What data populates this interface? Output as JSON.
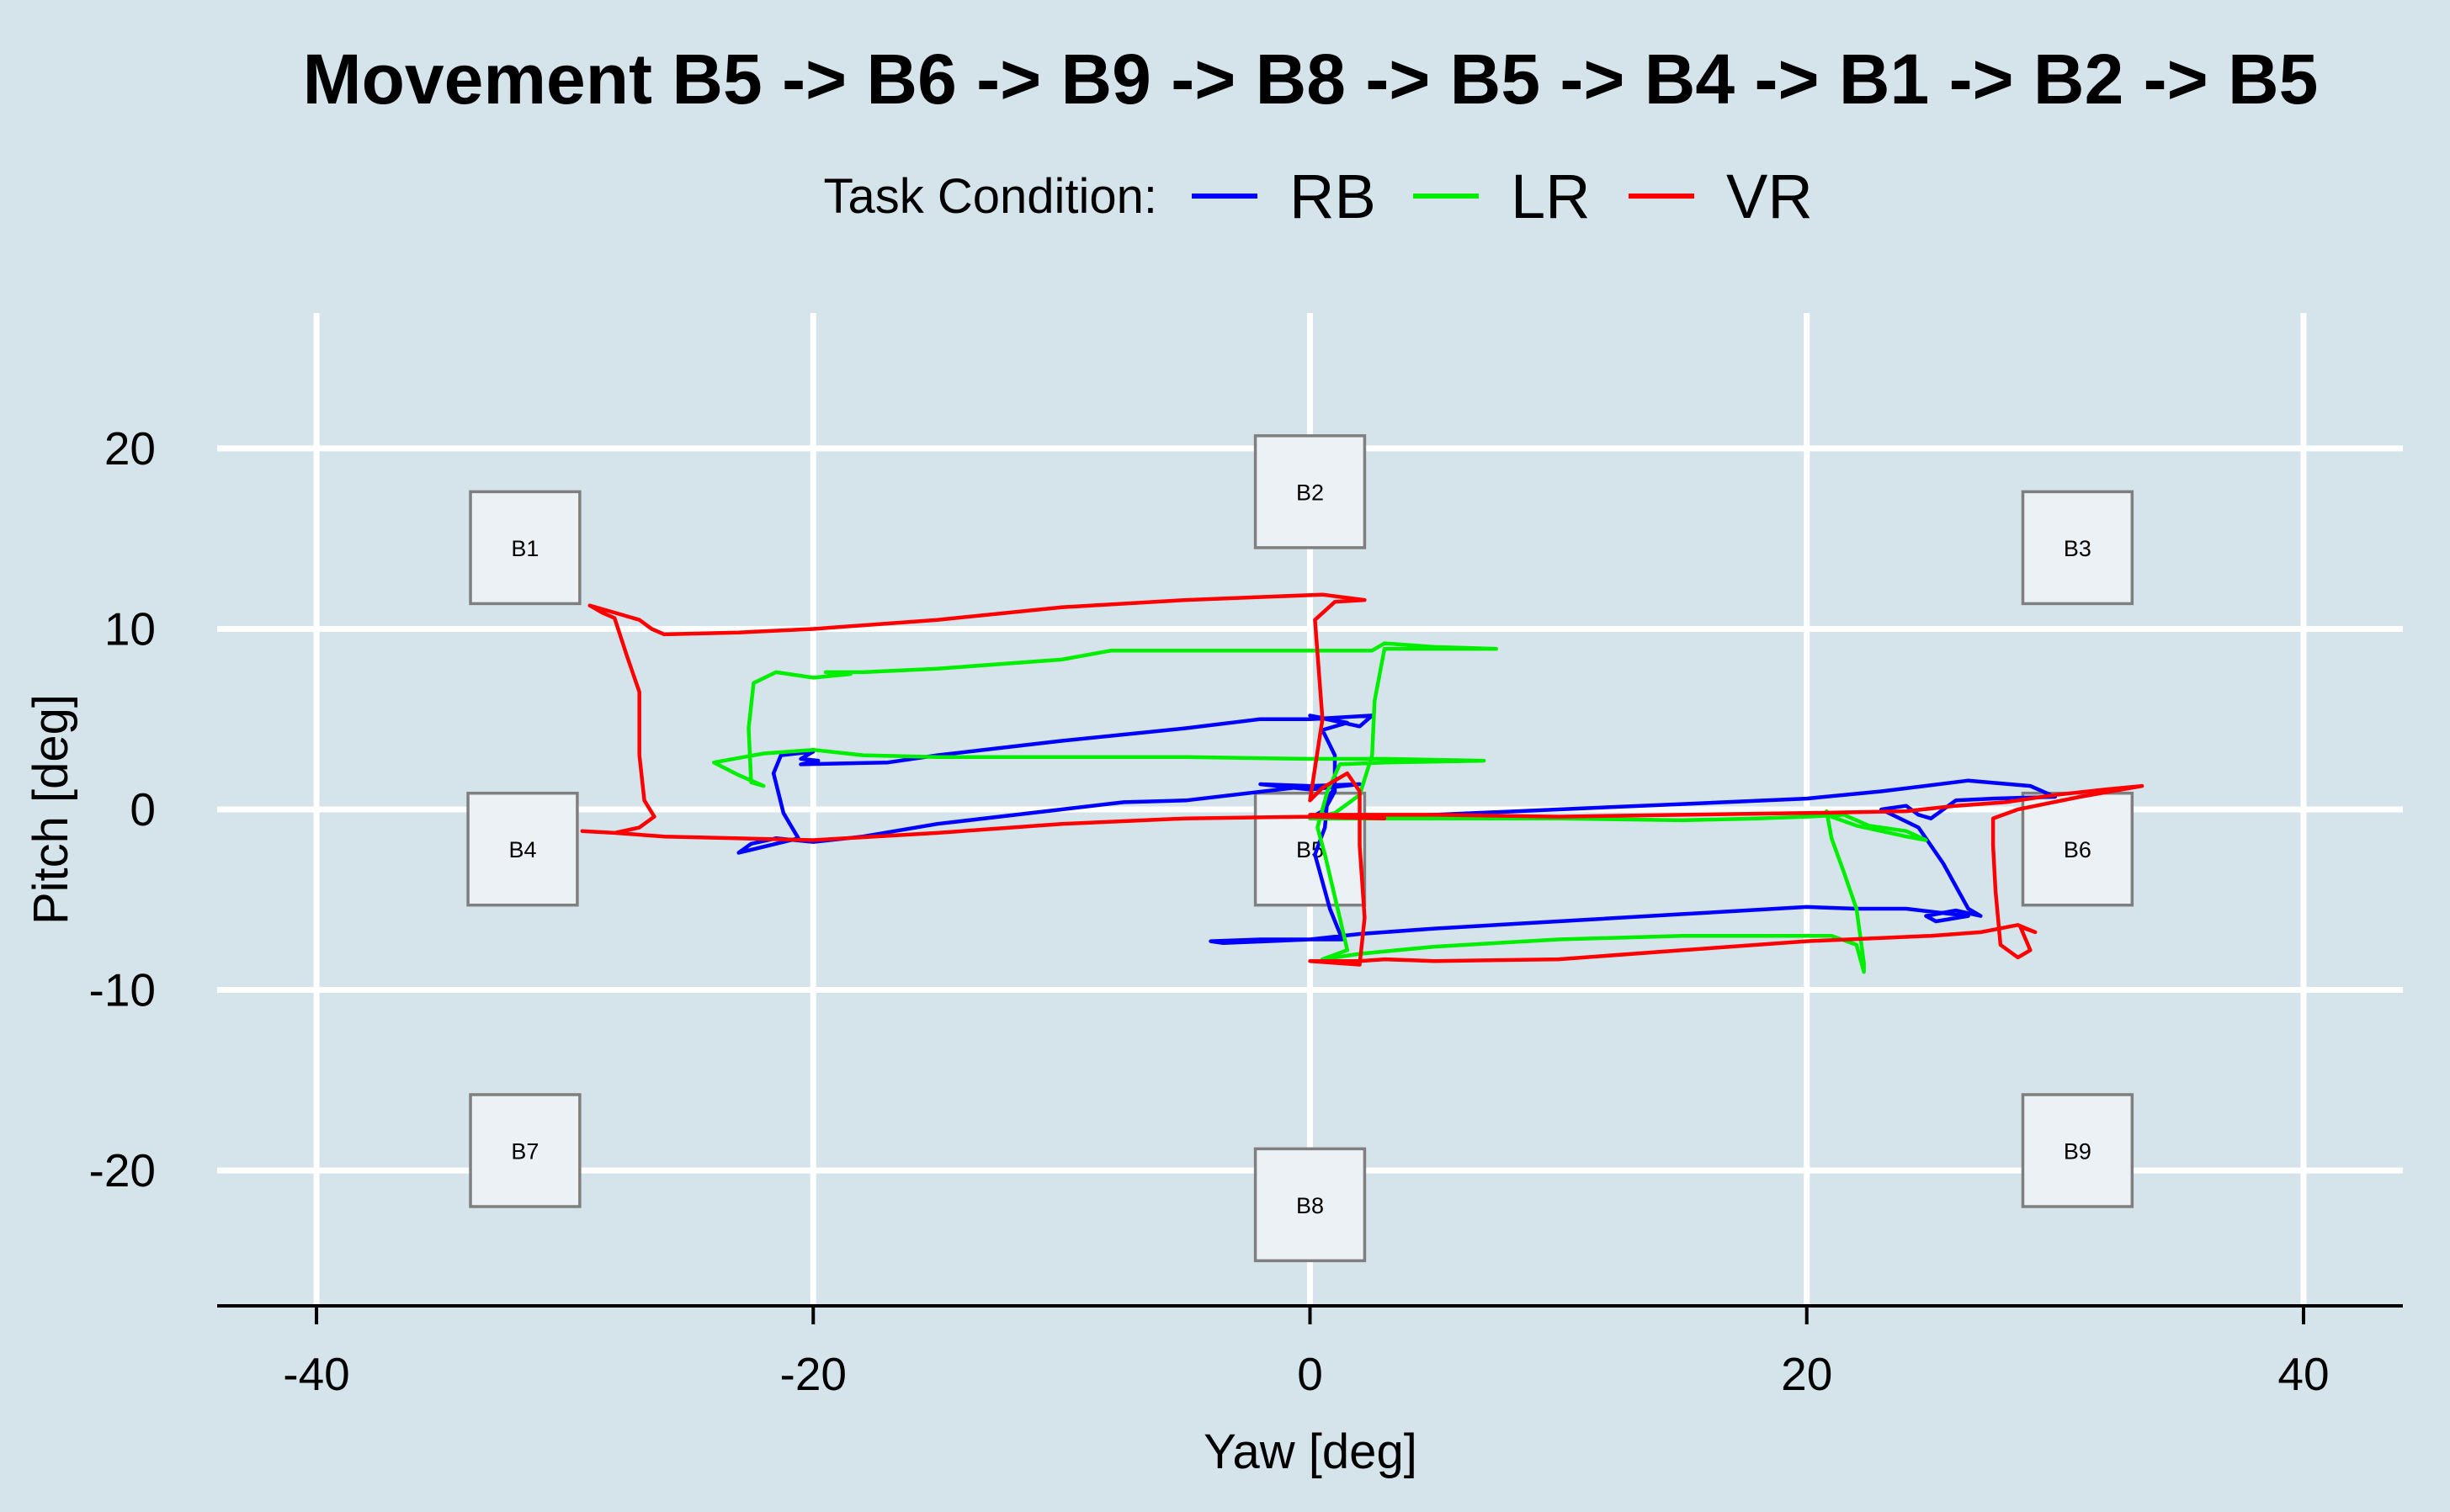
{
  "chart_data": {
    "type": "line",
    "title": "Movement B5 -> B6 -> B9 -> B8 -> B5 -> B4 -> B1 -> B2 -> B5",
    "xlabel": "Yaw [deg]",
    "ylabel": "Pitch [deg]",
    "xlim": [
      -44,
      44
    ],
    "ylim": [
      -27.5,
      27.5
    ],
    "x_ticks": [
      -40,
      -20,
      0,
      20,
      40
    ],
    "y_ticks": [
      -20,
      -10,
      0,
      10,
      20
    ],
    "x_tick_labels": [
      "-40",
      "-20",
      "0",
      "20",
      "40"
    ],
    "y_tick_labels": [
      "-20",
      "-10",
      "0",
      "10",
      "20"
    ],
    "grid": true,
    "legend": {
      "title": "Task Condition:",
      "position": "top-center",
      "entries": [
        "RB",
        "LR",
        "VR"
      ]
    },
    "targets": [
      {
        "name": "B1",
        "x": -31.6,
        "y": 14.5
      },
      {
        "name": "B2",
        "x": 0.0,
        "y": 17.6
      },
      {
        "name": "B3",
        "x": 30.9,
        "y": 14.5
      },
      {
        "name": "B4",
        "x": -31.7,
        "y": -2.2
      },
      {
        "name": "B5",
        "x": 0.0,
        "y": -2.2
      },
      {
        "name": "B6",
        "x": 30.9,
        "y": -2.2
      },
      {
        "name": "B7",
        "x": -31.6,
        "y": -18.9
      },
      {
        "name": "B8",
        "x": 0.0,
        "y": -21.9
      },
      {
        "name": "B9",
        "x": 30.9,
        "y": -18.9
      }
    ],
    "target_size": [
      4.4,
      6.2
    ],
    "series": [
      {
        "name": "RB",
        "color": "#0000ff",
        "points": [
          [
            0.0,
            -0.5
          ],
          [
            5.0,
            -0.3
          ],
          [
            10.0,
            0.0
          ],
          [
            15.0,
            0.3
          ],
          [
            20.0,
            0.6
          ],
          [
            23.0,
            1.0
          ],
          [
            26.5,
            1.6
          ],
          [
            29.0,
            1.3
          ],
          [
            30.0,
            0.7
          ],
          [
            27.5,
            0.6
          ],
          [
            26.0,
            0.5
          ],
          [
            25.0,
            -0.5
          ],
          [
            24.5,
            -0.3
          ],
          [
            24.0,
            0.2
          ],
          [
            23.0,
            0.0
          ],
          [
            24.5,
            -1.0
          ],
          [
            25.5,
            -3.0
          ],
          [
            26.5,
            -5.5
          ],
          [
            27.0,
            -5.9
          ],
          [
            26.0,
            -5.6
          ],
          [
            24.8,
            -5.9
          ],
          [
            25.2,
            -6.2
          ],
          [
            26.5,
            -5.9
          ],
          [
            24.0,
            -5.5
          ],
          [
            22.0,
            -5.5
          ],
          [
            20.0,
            -5.4
          ],
          [
            15.0,
            -5.8
          ],
          [
            10.0,
            -6.2
          ],
          [
            5.0,
            -6.6
          ],
          [
            2.0,
            -6.9
          ],
          [
            0.0,
            -7.2
          ],
          [
            -2.0,
            -7.2
          ],
          [
            -4.0,
            -7.3
          ],
          [
            -3.5,
            -7.4
          ],
          [
            0.0,
            -7.2
          ],
          [
            1.3,
            -7.2
          ],
          [
            0.8,
            -5.5
          ],
          [
            0.2,
            -2.5
          ],
          [
            0.6,
            -1.0
          ],
          [
            0.7,
            0.6
          ],
          [
            1.0,
            1.2
          ],
          [
            0.0,
            1.3
          ],
          [
            -2.0,
            1.4
          ],
          [
            0.0,
            1.1
          ],
          [
            2.0,
            1.4
          ],
          [
            0.0,
            1.3
          ],
          [
            -5.0,
            0.5
          ],
          [
            -7.5,
            0.4
          ],
          [
            -10.0,
            0.0
          ],
          [
            -15.0,
            -0.8
          ],
          [
            -18.0,
            -1.5
          ],
          [
            -20.0,
            -1.8
          ],
          [
            -21.5,
            -1.6
          ],
          [
            -22.5,
            -1.9
          ],
          [
            -23.0,
            -2.4
          ],
          [
            -21.8,
            -2.0
          ],
          [
            -20.6,
            -1.6
          ],
          [
            -21.2,
            -0.2
          ],
          [
            -21.6,
            2.0
          ],
          [
            -21.3,
            3.0
          ],
          [
            -20.0,
            3.2
          ],
          [
            -20.5,
            2.8
          ],
          [
            -19.8,
            2.7
          ],
          [
            -20.5,
            2.5
          ],
          [
            -17.0,
            2.6
          ],
          [
            -15.0,
            3.0
          ],
          [
            -10.0,
            3.8
          ],
          [
            -5.0,
            4.5
          ],
          [
            -2.0,
            5.0
          ],
          [
            0.0,
            5.0
          ],
          [
            2.5,
            5.2
          ],
          [
            2.0,
            4.6
          ],
          [
            0.0,
            5.2
          ],
          [
            1.5,
            4.8
          ],
          [
            0.5,
            4.4
          ],
          [
            1.0,
            3.0
          ],
          [
            1.0,
            1.0
          ],
          [
            0.6,
            0.0
          ],
          [
            0.0,
            -0.5
          ]
        ]
      },
      {
        "name": "LR",
        "color": "#00ee00",
        "points": [
          [
            0.0,
            -0.5
          ],
          [
            5.0,
            -0.5
          ],
          [
            10.0,
            -0.5
          ],
          [
            15.0,
            -0.6
          ],
          [
            18.0,
            -0.5
          ],
          [
            20.0,
            -0.4
          ],
          [
            21.5,
            -0.3
          ],
          [
            22.5,
            -0.9
          ],
          [
            24.0,
            -1.2
          ],
          [
            24.8,
            -1.7
          ],
          [
            24.0,
            -1.5
          ],
          [
            22.0,
            -0.9
          ],
          [
            21.0,
            -0.4
          ],
          [
            20.8,
            -0.1
          ],
          [
            21.0,
            -1.6
          ],
          [
            21.5,
            -3.5
          ],
          [
            22.0,
            -5.5
          ],
          [
            22.2,
            -7.5
          ],
          [
            22.3,
            -8.5
          ],
          [
            22.3,
            -9.0
          ],
          [
            22.0,
            -7.5
          ],
          [
            21.0,
            -7.0
          ],
          [
            20.0,
            -7.0
          ],
          [
            15.0,
            -7.0
          ],
          [
            10.0,
            -7.2
          ],
          [
            5.0,
            -7.6
          ],
          [
            2.0,
            -8.0
          ],
          [
            0.5,
            -8.3
          ],
          [
            1.5,
            -7.8
          ],
          [
            1.2,
            -6.0
          ],
          [
            0.6,
            -2.5
          ],
          [
            0.3,
            -1.0
          ],
          [
            0.7,
            1.0
          ],
          [
            1.2,
            2.5
          ],
          [
            3.0,
            2.6
          ],
          [
            7.0,
            2.7
          ],
          [
            3.0,
            2.8
          ],
          [
            0.0,
            2.8
          ],
          [
            -5.0,
            2.9
          ],
          [
            -10.0,
            2.9
          ],
          [
            -15.0,
            2.9
          ],
          [
            -18.0,
            3.0
          ],
          [
            -20.0,
            3.3
          ],
          [
            -22.0,
            3.1
          ],
          [
            -24.0,
            2.6
          ],
          [
            -23.0,
            1.9
          ],
          [
            -22.0,
            1.3
          ],
          [
            -22.5,
            1.5
          ],
          [
            -22.6,
            4.5
          ],
          [
            -22.4,
            7.0
          ],
          [
            -21.5,
            7.6
          ],
          [
            -20.0,
            7.3
          ],
          [
            -18.5,
            7.5
          ],
          [
            -19.5,
            7.6
          ],
          [
            -18.0,
            7.6
          ],
          [
            -15.0,
            7.8
          ],
          [
            -10.0,
            8.3
          ],
          [
            -8.0,
            8.8
          ],
          [
            -5.0,
            8.8
          ],
          [
            0.0,
            8.8
          ],
          [
            2.5,
            8.8
          ],
          [
            3.0,
            9.2
          ],
          [
            5.0,
            9.0
          ],
          [
            7.5,
            8.9
          ],
          [
            3.0,
            8.9
          ],
          [
            2.6,
            6.0
          ],
          [
            2.5,
            3.0
          ],
          [
            2.0,
            0.8
          ],
          [
            1.0,
            -0.2
          ],
          [
            0.0,
            -0.5
          ]
        ]
      },
      {
        "name": "VR",
        "color": "#ff0000",
        "points": [
          [
            0.0,
            -0.3
          ],
          [
            5.0,
            -0.3
          ],
          [
            10.0,
            -0.4
          ],
          [
            15.0,
            -0.3
          ],
          [
            20.0,
            -0.2
          ],
          [
            24.0,
            -0.1
          ],
          [
            26.0,
            0.2
          ],
          [
            28.0,
            0.4
          ],
          [
            30.0,
            0.8
          ],
          [
            32.0,
            1.1
          ],
          [
            33.5,
            1.3
          ],
          [
            31.0,
            0.7
          ],
          [
            28.5,
            0.0
          ],
          [
            27.5,
            -0.5
          ],
          [
            27.5,
            -2.0
          ],
          [
            27.6,
            -4.5
          ],
          [
            27.8,
            -7.5
          ],
          [
            28.5,
            -8.2
          ],
          [
            29.0,
            -7.8
          ],
          [
            28.6,
            -6.5
          ],
          [
            29.2,
            -6.8
          ],
          [
            28.5,
            -6.4
          ],
          [
            27.0,
            -6.8
          ],
          [
            25.0,
            -7.0
          ],
          [
            20.0,
            -7.3
          ],
          [
            15.0,
            -7.8
          ],
          [
            10.0,
            -8.3
          ],
          [
            5.0,
            -8.4
          ],
          [
            3.0,
            -8.3
          ],
          [
            2.0,
            -8.4
          ],
          [
            0.0,
            -8.4
          ],
          [
            2.0,
            -8.6
          ],
          [
            2.2,
            -6.0
          ],
          [
            2.0,
            -2.0
          ],
          [
            2.0,
            1.0
          ],
          [
            1.5,
            2.0
          ],
          [
            0.5,
            1.2
          ],
          [
            0.0,
            0.5
          ],
          [
            0.5,
            5.0
          ],
          [
            0.2,
            10.5
          ],
          [
            1.0,
            11.5
          ],
          [
            2.2,
            11.6
          ],
          [
            0.5,
            11.9
          ],
          [
            -5.0,
            11.6
          ],
          [
            -10.0,
            11.2
          ],
          [
            -15.0,
            10.5
          ],
          [
            -20.0,
            10.0
          ],
          [
            -23.0,
            9.8
          ],
          [
            -26.0,
            9.7
          ],
          [
            -26.5,
            10.0
          ],
          [
            -27.0,
            10.5
          ],
          [
            -28.0,
            10.9
          ],
          [
            -29.0,
            11.3
          ],
          [
            -28.5,
            10.9
          ],
          [
            -28.0,
            10.6
          ],
          [
            -27.5,
            8.5
          ],
          [
            -27.0,
            6.5
          ],
          [
            -27.0,
            3.0
          ],
          [
            -26.8,
            0.5
          ],
          [
            -26.4,
            -0.4
          ],
          [
            -27.0,
            -1.0
          ],
          [
            -28.0,
            -1.3
          ],
          [
            -29.3,
            -1.2
          ],
          [
            -28.0,
            -1.3
          ],
          [
            -26.0,
            -1.5
          ],
          [
            -20.0,
            -1.7
          ],
          [
            -15.0,
            -1.3
          ],
          [
            -10.0,
            -0.8
          ],
          [
            -5.0,
            -0.5
          ],
          [
            0.0,
            -0.4
          ],
          [
            3.0,
            -0.5
          ],
          [
            0.0,
            -0.3
          ]
        ]
      }
    ]
  }
}
